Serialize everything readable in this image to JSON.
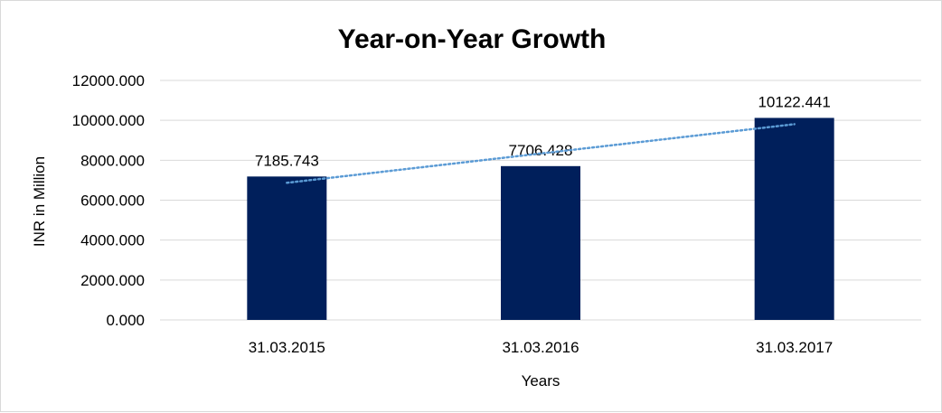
{
  "chart_data": {
    "type": "bar",
    "title": "Year-on-Year Growth",
    "xlabel": "Years",
    "ylabel": "INR in Million",
    "categories": [
      "31.03.2015",
      "31.03.2016",
      "31.03.2017"
    ],
    "values": [
      7185.743,
      7706.428,
      10122.441
    ],
    "data_labels": [
      "7185.743",
      "7706.428",
      "10122.441"
    ],
    "ylim": [
      0,
      12000
    ],
    "yticks": [
      0,
      2000,
      4000,
      6000,
      8000,
      10000,
      12000
    ],
    "ytick_labels": [
      "0.000",
      "2000.000",
      "4000.000",
      "6000.000",
      "8000.000",
      "10000.000",
      "12000.000"
    ],
    "grid": true,
    "legend": "none",
    "trendline": {
      "type": "linear",
      "style": "dotted"
    },
    "colors": {
      "bar": "#001F5B",
      "trendline": "#5B9BD5",
      "grid": "#D9D9D9"
    }
  }
}
